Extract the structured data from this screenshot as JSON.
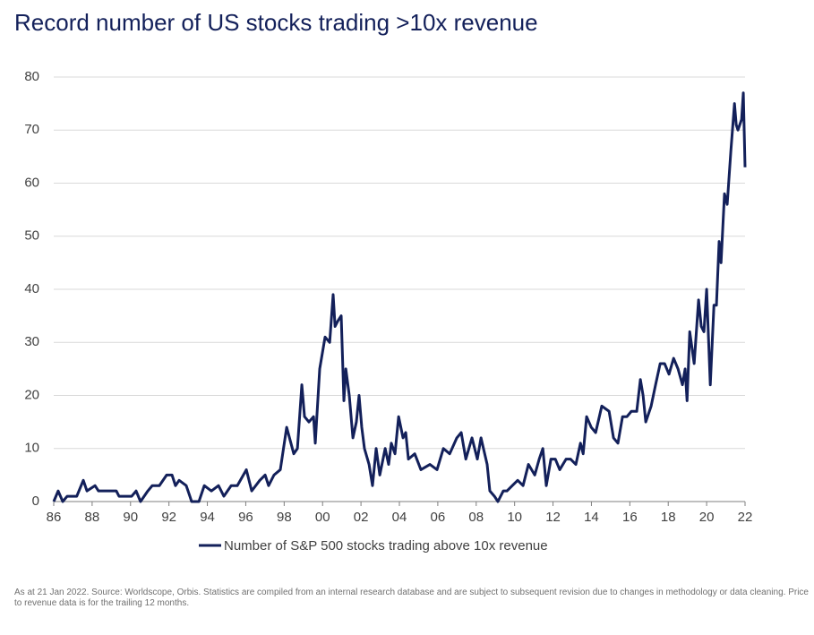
{
  "chart_data": {
    "type": "line",
    "title": "Record number of US stocks trading >10x revenue",
    "note": "As at 21 Jan 2022. Source: Worldscope, Orbis. Statistics are compiled from an internal research database and are subject to subsequent revision due to changes in methodology or data cleaning. Price to revenue data is for the trailing 12 months.",
    "x": [
      1986.0,
      1986.23,
      1986.47,
      1986.7,
      1987.2,
      1987.54,
      1987.73,
      1988.15,
      1988.33,
      1989.26,
      1989.4,
      1990.06,
      1990.29,
      1990.52,
      1990.9,
      1991.13,
      1991.5,
      1991.88,
      1992.16,
      1992.34,
      1992.53,
      1992.9,
      1993.09,
      1993.18,
      1993.56,
      1993.84,
      1994.21,
      1994.58,
      1994.86,
      1995.24,
      1995.56,
      1996.03,
      1996.31,
      1996.73,
      1997.01,
      1997.19,
      1997.47,
      1997.8,
      1998.13,
      1998.5,
      1998.69,
      1998.92,
      1999.06,
      1999.29,
      1999.53,
      1999.62,
      1999.85,
      2000.13,
      2000.37,
      2000.55,
      2000.65,
      2000.79,
      2000.97,
      2001.11,
      2001.21,
      2001.39,
      2001.58,
      2001.76,
      2001.9,
      2002.04,
      2002.18,
      2002.42,
      2002.6,
      2002.79,
      2002.98,
      2003.26,
      2003.44,
      2003.58,
      2003.77,
      2003.96,
      2004.19,
      2004.33,
      2004.47,
      2004.8,
      2005.12,
      2005.59,
      2005.96,
      2006.29,
      2006.62,
      2006.99,
      2007.22,
      2007.46,
      2007.78,
      2008.06,
      2008.25,
      2008.57,
      2008.71,
      2008.95,
      2009.13,
      2009.41,
      2009.6,
      2009.88,
      2010.16,
      2010.44,
      2010.72,
      2011.05,
      2011.28,
      2011.47,
      2011.65,
      2011.89,
      2012.12,
      2012.35,
      2012.68,
      2012.91,
      2013.19,
      2013.43,
      2013.57,
      2013.75,
      2013.99,
      2014.22,
      2014.54,
      2014.92,
      2015.15,
      2015.38,
      2015.62,
      2015.85,
      2016.08,
      2016.36,
      2016.55,
      2016.69,
      2016.83,
      2017.11,
      2017.34,
      2017.58,
      2017.81,
      2018.04,
      2018.28,
      2018.51,
      2018.74,
      2018.88,
      2018.98,
      2019.12,
      2019.35,
      2019.58,
      2019.72,
      2019.86,
      2020.0,
      2020.19,
      2020.38,
      2020.51,
      2020.65,
      2020.75,
      2020.93,
      2021.07,
      2021.26,
      2021.45,
      2021.54,
      2021.63,
      2021.82,
      2021.91,
      2022.0
    ],
    "series": [
      {
        "name": "Number of S&P 500 stocks trading above 10x revenue",
        "color": "#13205a",
        "values": [
          0,
          2,
          0,
          1,
          1,
          4,
          2,
          3,
          2,
          2,
          1,
          1,
          2,
          0,
          2,
          3,
          3,
          5,
          5,
          3,
          4,
          3,
          1,
          0,
          0,
          3,
          2,
          3,
          1,
          3,
          3,
          6,
          2,
          4,
          5,
          3,
          5,
          6,
          14,
          9,
          10,
          22,
          16,
          15,
          16,
          11,
          25,
          31,
          30,
          39,
          33,
          34,
          35,
          19,
          25,
          20,
          12,
          15,
          20,
          14,
          10,
          7,
          3,
          10,
          5,
          10,
          7,
          11,
          9,
          16,
          12,
          13,
          8,
          9,
          6,
          7,
          6,
          10,
          9,
          12,
          13,
          8,
          12,
          8,
          12,
          7,
          2,
          1,
          0,
          2,
          2,
          3,
          4,
          3,
          7,
          5,
          8,
          10,
          3,
          8,
          8,
          6,
          8,
          8,
          7,
          11,
          9,
          16,
          14,
          13,
          18,
          17,
          12,
          11,
          16,
          16,
          17,
          17,
          23,
          20,
          15,
          18,
          22,
          26,
          26,
          24,
          27,
          25,
          22,
          25,
          19,
          32,
          26,
          38,
          33,
          32,
          40,
          22,
          37,
          37,
          49,
          45,
          58,
          56,
          66,
          75,
          71,
          70,
          72,
          77,
          63
        ]
      }
    ],
    "xlim": [
      1986,
      2022
    ],
    "xticks": [
      {
        "value": 1986,
        "label": "86"
      },
      {
        "value": 1988,
        "label": "88"
      },
      {
        "value": 1990,
        "label": "90"
      },
      {
        "value": 1992,
        "label": "92"
      },
      {
        "value": 1994,
        "label": "94"
      },
      {
        "value": 1996,
        "label": "96"
      },
      {
        "value": 1998,
        "label": "98"
      },
      {
        "value": 2000,
        "label": "00"
      },
      {
        "value": 2002,
        "label": "02"
      },
      {
        "value": 2004,
        "label": "04"
      },
      {
        "value": 2006,
        "label": "06"
      },
      {
        "value": 2008,
        "label": "08"
      },
      {
        "value": 2010,
        "label": "10"
      },
      {
        "value": 2012,
        "label": "12"
      },
      {
        "value": 2014,
        "label": "14"
      },
      {
        "value": 2016,
        "label": "16"
      },
      {
        "value": 2018,
        "label": "18"
      },
      {
        "value": 2020,
        "label": "20"
      },
      {
        "value": 2022,
        "label": "22"
      }
    ],
    "ylim": [
      0,
      80
    ],
    "yticks": [
      0,
      10,
      20,
      30,
      40,
      50,
      60,
      70,
      80
    ],
    "grid": true,
    "legend": "bottom"
  }
}
